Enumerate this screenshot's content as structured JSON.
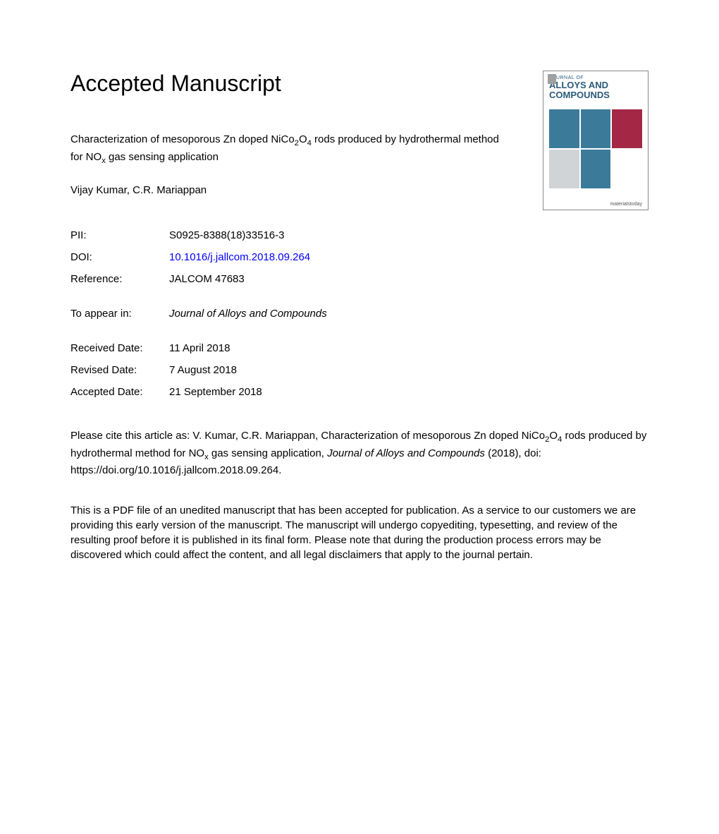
{
  "heading": "Accepted Manuscript",
  "title_parts": {
    "p1": "Characterization of mesoporous Zn doped NiCo",
    "sub1": "2",
    "p2": "O",
    "sub2": "4",
    "p3": " rods produced by hydrothermal method for NO",
    "sub3": "x",
    "p4": " gas sensing application"
  },
  "authors": "Vijay Kumar, C.R. Mariappan",
  "meta": {
    "pii_label": "PII:",
    "pii_value": "S0925-8388(18)33516-3",
    "doi_label": "DOI:",
    "doi_value": "10.1016/j.jallcom.2018.09.264",
    "ref_label": "Reference:",
    "ref_value": "JALCOM 47683",
    "appear_label": "To appear in:",
    "appear_value": "Journal of Alloys and Compounds",
    "received_label": "Received Date:",
    "received_value": "11 April 2018",
    "revised_label": "Revised Date:",
    "revised_value": "7 August 2018",
    "accepted_label": "Accepted Date:",
    "accepted_value": "21 September 2018"
  },
  "citation": {
    "p1": "Please cite this article as: V. Kumar, C.R. Mariappan, Characterization of mesoporous Zn doped NiCo",
    "sub1": "2",
    "p2": "O",
    "sub2": "4",
    "p3": " rods produced by hydrothermal method for NO",
    "sub3": "x",
    "p4": " gas sensing application, ",
    "journal": "Journal of Alloys and Compounds",
    "p5": " (2018), doi: https://doi.org/10.1016/j.jallcom.2018.09.264."
  },
  "disclaimer": "This is a PDF file of an unedited manuscript that has been accepted for publication. As a service to our customers we are providing this early version of the manuscript. The manuscript will undergo copyediting, typesetting, and review of the resulting proof before it is published in its final form. Please note that during the production process errors may be discovered which could affect the content, and all legal disclaimers that apply to the journal pertain.",
  "cover": {
    "journal_of": "JOURNAL OF",
    "title_line1": "ALLOYS AND",
    "title_line2": "COMPOUNDS",
    "footer": "materialstoday",
    "square_colors": [
      "#3b7a99",
      "#3b7a99",
      "#a42846",
      "#d0d4d7",
      "#3b7a99",
      "#ffffff"
    ]
  }
}
